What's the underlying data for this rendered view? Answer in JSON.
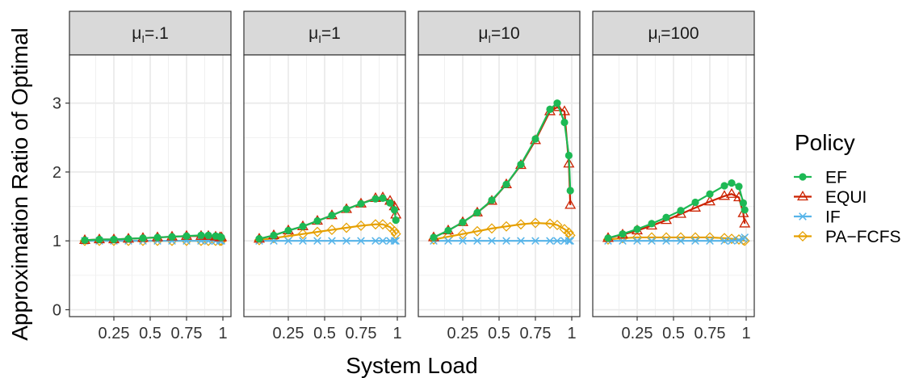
{
  "chart_data": {
    "type": "line",
    "xlabel": "System Load",
    "ylabel": "Approximation Ratio of Optimal",
    "xlim": [
      0,
      1
    ],
    "ylim": [
      -0.1,
      3.7
    ],
    "x_ticks": [
      0.25,
      0.5,
      0.75,
      1
    ],
    "x_tick_labels": [
      "0.25",
      "0.5",
      "0.75",
      "1"
    ],
    "y_ticks": [
      0,
      1,
      2,
      3
    ],
    "y_tick_labels": [
      "0",
      "1",
      "2",
      "3"
    ],
    "grid": true,
    "legend": {
      "title": "Policy",
      "position": "right"
    },
    "colors": {
      "EF": "#1db954",
      "EQUI": "#cc2200",
      "IF": "#56b4e9",
      "PA-FCFS": "#e6a000"
    },
    "series_markers": {
      "EF": "circle",
      "EQUI": "triangle",
      "IF": "x",
      "PA-FCFS": "diamond"
    },
    "legend_labels": [
      "EF",
      "EQUI",
      "IF",
      "PA−FCFS"
    ],
    "x": [
      0.05,
      0.15,
      0.25,
      0.35,
      0.45,
      0.55,
      0.65,
      0.75,
      0.85,
      0.9,
      0.95,
      0.98,
      0.99
    ],
    "panels": [
      {
        "label_prefix": "μ",
        "label_sub": "I",
        "label_suffix": "=.1",
        "series": [
          {
            "name": "EF",
            "values": [
              1.01,
              1.02,
              1.02,
              1.03,
              1.04,
              1.05,
              1.06,
              1.07,
              1.08,
              1.08,
              1.07,
              1.06,
              1.05
            ]
          },
          {
            "name": "EQUI",
            "values": [
              1.01,
              1.02,
              1.02,
              1.03,
              1.04,
              1.05,
              1.06,
              1.07,
              1.07,
              1.07,
              1.06,
              1.05,
              1.05
            ]
          },
          {
            "name": "IF",
            "values": [
              1.0,
              1.0,
              1.0,
              1.0,
              1.0,
              1.0,
              1.0,
              1.0,
              1.0,
              1.0,
              1.0,
              1.0,
              1.0
            ]
          },
          {
            "name": "PA-FCFS",
            "values": [
              1.0,
              1.0,
              1.0,
              1.0,
              1.0,
              1.0,
              1.0,
              1.0,
              1.0,
              1.0,
              1.0,
              1.0,
              1.0
            ]
          }
        ]
      },
      {
        "label_prefix": "μ",
        "label_sub": "I",
        "label_suffix": "=1",
        "series": [
          {
            "name": "EF",
            "values": [
              1.03,
              1.08,
              1.15,
              1.21,
              1.29,
              1.37,
              1.46,
              1.54,
              1.61,
              1.62,
              1.55,
              1.45,
              1.3
            ]
          },
          {
            "name": "EQUI",
            "values": [
              1.03,
              1.08,
              1.15,
              1.21,
              1.29,
              1.37,
              1.46,
              1.54,
              1.62,
              1.63,
              1.58,
              1.5,
              1.38
            ]
          },
          {
            "name": "IF",
            "values": [
              1.0,
              1.0,
              1.0,
              1.0,
              1.0,
              1.0,
              1.0,
              1.0,
              1.0,
              1.0,
              1.0,
              1.0,
              1.0
            ]
          },
          {
            "name": "PA-FCFS",
            "values": [
              1.01,
              1.04,
              1.07,
              1.1,
              1.13,
              1.16,
              1.19,
              1.22,
              1.24,
              1.24,
              1.2,
              1.14,
              1.1
            ]
          }
        ]
      },
      {
        "label_prefix": "μ",
        "label_sub": "I",
        "label_suffix": "=10",
        "series": [
          {
            "name": "EF",
            "values": [
              1.05,
              1.15,
              1.27,
              1.41,
              1.59,
              1.82,
              2.11,
              2.48,
              2.91,
              3.0,
              2.72,
              2.24,
              1.73
            ]
          },
          {
            "name": "EQUI",
            "values": [
              1.05,
              1.15,
              1.27,
              1.41,
              1.58,
              1.82,
              2.1,
              2.46,
              2.88,
              2.94,
              2.88,
              2.12,
              1.52
            ]
          },
          {
            "name": "IF",
            "values": [
              1.0,
              1.0,
              1.0,
              1.0,
              1.0,
              1.0,
              1.0,
              1.0,
              1.0,
              1.0,
              1.0,
              1.0,
              1.0
            ]
          },
          {
            "name": "PA-FCFS",
            "values": [
              1.02,
              1.06,
              1.1,
              1.14,
              1.18,
              1.21,
              1.24,
              1.26,
              1.25,
              1.23,
              1.17,
              1.12,
              1.08
            ]
          }
        ]
      },
      {
        "label_prefix": "μ",
        "label_sub": "I",
        "label_suffix": "=100",
        "series": [
          {
            "name": "EF",
            "values": [
              1.04,
              1.1,
              1.17,
              1.25,
              1.34,
              1.44,
              1.56,
              1.68,
              1.8,
              1.84,
              1.79,
              1.55,
              1.45
            ]
          },
          {
            "name": "EQUI",
            "values": [
              1.04,
              1.09,
              1.15,
              1.22,
              1.3,
              1.39,
              1.48,
              1.57,
              1.65,
              1.68,
              1.63,
              1.4,
              1.25
            ]
          },
          {
            "name": "IF",
            "values": [
              1.0,
              1.0,
              1.0,
              1.0,
              1.0,
              1.0,
              1.0,
              1.0,
              1.0,
              1.0,
              1.01,
              1.03,
              1.05
            ]
          },
          {
            "name": "PA-FCFS",
            "values": [
              1.02,
              1.04,
              1.05,
              1.05,
              1.05,
              1.05,
              1.05,
              1.05,
              1.04,
              1.03,
              1.02,
              1.01,
              1.0
            ]
          }
        ]
      }
    ]
  }
}
